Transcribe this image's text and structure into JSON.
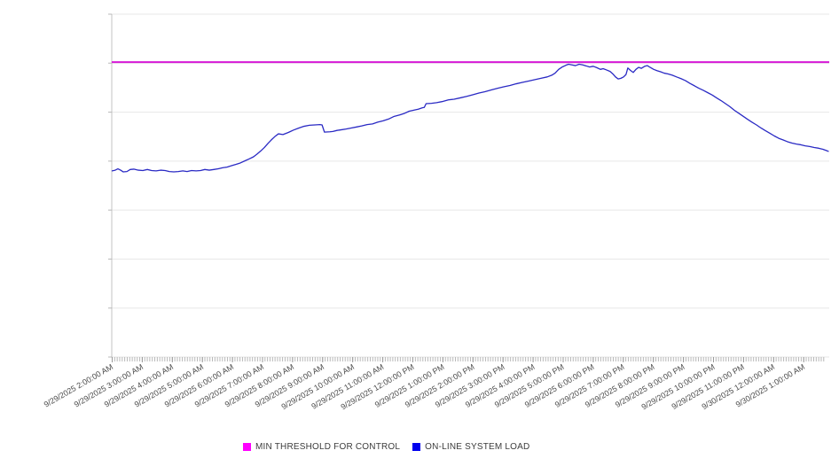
{
  "chart_data": {
    "type": "line",
    "title": "",
    "x_axis": {
      "tick_labels": [
        "9/29/2025 2:00:00 AM",
        "9/29/2025 3:00:00 AM",
        "9/29/2025 4:00:00 AM",
        "9/29/2025 5:00:00 AM",
        "9/29/2025 6:00:00 AM",
        "9/29/2025 7:00:00 AM",
        "9/29/2025 8:00:00 AM",
        "9/29/2025 9:00:00 AM",
        "9/29/2025 10:00:00 AM",
        "9/29/2025 11:00:00 AM",
        "9/29/2025 12:00:00 PM",
        "9/29/2025 1:00:00 PM",
        "9/29/2025 2:00:00 PM",
        "9/29/2025 3:00:00 PM",
        "9/29/2025 4:00:00 PM",
        "9/29/2025 5:00:00 PM",
        "9/29/2025 6:00:00 PM",
        "9/29/2025 7:00:00 PM",
        "9/29/2025 8:00:00 PM",
        "9/29/2025 9:00:00 PM",
        "9/29/2025 10:00:00 PM",
        "9/29/2025 11:00:00 PM",
        "9/30/2025 12:00:00 AM",
        "9/30/2025 1:00:00 AM"
      ],
      "hours_span": 23.85,
      "minor_tick_minutes": 5,
      "label_rotation_deg": -30
    },
    "y_axis": {
      "labels_visible": false,
      "internal_range": [
        0,
        100
      ],
      "grid_divisions": 7
    },
    "grid": true,
    "legend_position": "bottom",
    "series": [
      {
        "name": "MIN THRESHOLD FOR CONTROL",
        "type": "threshold-hline",
        "value": 86,
        "color": "#d619d6",
        "swatch_color": "#ff00ff"
      },
      {
        "name": "ON-LINE SYSTEM LOAD",
        "type": "line",
        "color": "#2a2ac4",
        "swatch_color": "#0000ee",
        "points": [
          [
            0,
            54.3
          ],
          [
            0.1,
            54.5
          ],
          [
            0.19,
            54.9
          ],
          [
            0.28,
            54.5
          ],
          [
            0.37,
            54.0
          ],
          [
            0.49,
            54.1
          ],
          [
            0.6,
            54.7
          ],
          [
            0.72,
            54.8
          ],
          [
            0.87,
            54.5
          ],
          [
            1.02,
            54.4
          ],
          [
            1.17,
            54.7
          ],
          [
            1.31,
            54.4
          ],
          [
            1.46,
            54.3
          ],
          [
            1.61,
            54.5
          ],
          [
            1.76,
            54.4
          ],
          [
            1.9,
            54.1
          ],
          [
            2.05,
            54.0
          ],
          [
            2.2,
            54.1
          ],
          [
            2.35,
            54.3
          ],
          [
            2.49,
            54.1
          ],
          [
            2.64,
            54.4
          ],
          [
            2.79,
            54.3
          ],
          [
            2.94,
            54.4
          ],
          [
            3.08,
            54.7
          ],
          [
            3.23,
            54.5
          ],
          [
            3.38,
            54.7
          ],
          [
            3.53,
            54.9
          ],
          [
            3.67,
            55.2
          ],
          [
            3.82,
            55.4
          ],
          [
            3.97,
            55.8
          ],
          [
            4.12,
            56.2
          ],
          [
            4.26,
            56.6
          ],
          [
            4.41,
            57.2
          ],
          [
            4.56,
            57.8
          ],
          [
            4.7,
            58.4
          ],
          [
            4.82,
            59.2
          ],
          [
            4.94,
            60.1
          ],
          [
            5.06,
            61.1
          ],
          [
            5.18,
            62.3
          ],
          [
            5.29,
            63.3
          ],
          [
            5.41,
            64.3
          ],
          [
            5.53,
            65.1
          ],
          [
            5.68,
            64.9
          ],
          [
            5.86,
            65.5
          ],
          [
            6.03,
            66.2
          ],
          [
            6.21,
            66.8
          ],
          [
            6.38,
            67.3
          ],
          [
            6.56,
            67.6
          ],
          [
            6.74,
            67.7
          ],
          [
            6.91,
            67.8
          ],
          [
            6.98,
            67.7
          ],
          [
            7.06,
            65.6
          ],
          [
            7.24,
            65.7
          ],
          [
            7.34,
            65.8
          ],
          [
            7.48,
            66.1
          ],
          [
            7.63,
            66.3
          ],
          [
            7.78,
            66.5
          ],
          [
            7.95,
            66.8
          ],
          [
            8.13,
            67.1
          ],
          [
            8.3,
            67.4
          ],
          [
            8.48,
            67.8
          ],
          [
            8.66,
            68.0
          ],
          [
            8.83,
            68.5
          ],
          [
            9.01,
            68.9
          ],
          [
            9.19,
            69.4
          ],
          [
            9.38,
            70.2
          ],
          [
            9.56,
            70.6
          ],
          [
            9.73,
            71.1
          ],
          [
            9.88,
            71.7
          ],
          [
            10.03,
            72.0
          ],
          [
            10.18,
            72.3
          ],
          [
            10.32,
            72.7
          ],
          [
            10.38,
            72.8
          ],
          [
            10.44,
            73.9
          ],
          [
            10.62,
            74.0
          ],
          [
            10.79,
            74.2
          ],
          [
            10.97,
            74.5
          ],
          [
            11.18,
            75.0
          ],
          [
            11.37,
            75.2
          ],
          [
            11.58,
            75.6
          ],
          [
            11.78,
            76.0
          ],
          [
            11.99,
            76.5
          ],
          [
            12.2,
            77.0
          ],
          [
            12.4,
            77.4
          ],
          [
            12.61,
            77.9
          ],
          [
            12.82,
            78.4
          ],
          [
            13.02,
            78.8
          ],
          [
            13.23,
            79.2
          ],
          [
            13.44,
            79.7
          ],
          [
            13.64,
            80.1
          ],
          [
            13.85,
            80.5
          ],
          [
            14.06,
            80.9
          ],
          [
            14.26,
            81.3
          ],
          [
            14.47,
            81.7
          ],
          [
            14.62,
            82.2
          ],
          [
            14.73,
            82.8
          ],
          [
            14.85,
            83.9
          ],
          [
            14.97,
            84.6
          ],
          [
            15.09,
            85.1
          ],
          [
            15.18,
            85.4
          ],
          [
            15.29,
            85.2
          ],
          [
            15.41,
            85.0
          ],
          [
            15.53,
            85.4
          ],
          [
            15.65,
            85.2
          ],
          [
            15.77,
            84.9
          ],
          [
            15.88,
            84.6
          ],
          [
            16.0,
            84.8
          ],
          [
            16.12,
            84.4
          ],
          [
            16.24,
            83.9
          ],
          [
            16.33,
            84.1
          ],
          [
            16.45,
            83.7
          ],
          [
            16.56,
            83.3
          ],
          [
            16.65,
            82.6
          ],
          [
            16.74,
            81.7
          ],
          [
            16.83,
            81.1
          ],
          [
            16.92,
            81.3
          ],
          [
            17.01,
            81.7
          ],
          [
            17.09,
            82.4
          ],
          [
            17.15,
            84.3
          ],
          [
            17.24,
            83.6
          ],
          [
            17.33,
            83.0
          ],
          [
            17.42,
            83.9
          ],
          [
            17.51,
            84.5
          ],
          [
            17.6,
            84.2
          ],
          [
            17.71,
            84.8
          ],
          [
            17.8,
            85.0
          ],
          [
            17.89,
            84.5
          ],
          [
            18.01,
            83.9
          ],
          [
            18.13,
            83.5
          ],
          [
            18.24,
            83.2
          ],
          [
            18.36,
            82.8
          ],
          [
            18.48,
            82.6
          ],
          [
            18.63,
            82.2
          ],
          [
            18.77,
            81.7
          ],
          [
            18.92,
            81.2
          ],
          [
            19.07,
            80.6
          ],
          [
            19.22,
            79.8
          ],
          [
            19.37,
            79.1
          ],
          [
            19.51,
            78.4
          ],
          [
            19.66,
            77.8
          ],
          [
            19.81,
            77.1
          ],
          [
            19.96,
            76.4
          ],
          [
            20.1,
            75.6
          ],
          [
            20.25,
            74.8
          ],
          [
            20.4,
            73.9
          ],
          [
            20.55,
            73.0
          ],
          [
            20.69,
            72.0
          ],
          [
            20.84,
            71.1
          ],
          [
            20.99,
            70.2
          ],
          [
            21.14,
            69.3
          ],
          [
            21.28,
            68.5
          ],
          [
            21.43,
            67.7
          ],
          [
            21.58,
            66.8
          ],
          [
            21.73,
            66.0
          ],
          [
            21.87,
            65.3
          ],
          [
            22.02,
            64.5
          ],
          [
            22.17,
            63.8
          ],
          [
            22.32,
            63.3
          ],
          [
            22.46,
            62.8
          ],
          [
            22.61,
            62.4
          ],
          [
            22.76,
            62.1
          ],
          [
            22.91,
            61.9
          ],
          [
            23.05,
            61.6
          ],
          [
            23.2,
            61.4
          ],
          [
            23.35,
            61.1
          ],
          [
            23.5,
            60.9
          ],
          [
            23.64,
            60.6
          ],
          [
            23.76,
            60.2
          ],
          [
            23.82,
            60.0
          ]
        ]
      }
    ]
  },
  "legend": {
    "items": [
      {
        "label": "MIN THRESHOLD FOR CONTROL",
        "color": "#ff00ff"
      },
      {
        "label": "ON-LINE SYSTEM LOAD",
        "color": "#0000ee"
      }
    ]
  },
  "colors": {
    "background": "#ffffff",
    "gridline": "#e7e7e7",
    "axis": "#c3c3c3",
    "tick": "#b8b8b8",
    "threshold_line": "#d619d6",
    "load_line": "#2a2ac4",
    "x_label_text": "#4a4a4a",
    "legend_text": "#3c3c3c"
  }
}
